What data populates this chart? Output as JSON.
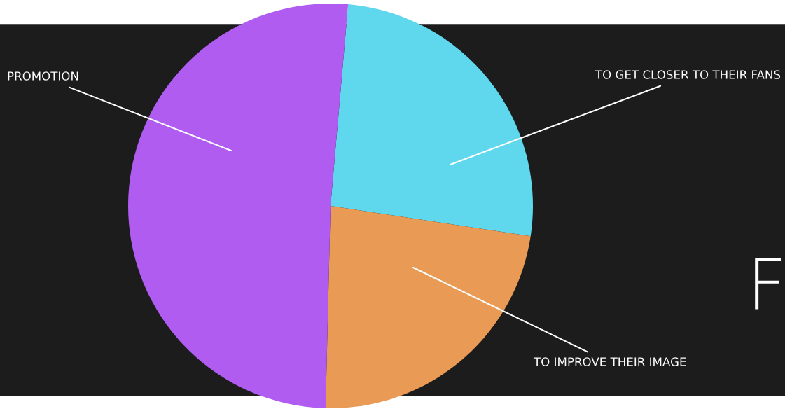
{
  "chart_data": {
    "type": "pie",
    "categories": [
      "TO GET CLOSER TO THEIR FANS",
      "TO IMPROVE THEIR IMAGE",
      "PROMOTION"
    ],
    "values": [
      26,
      23,
      51
    ],
    "colors": [
      "#5fd8ee",
      "#e99a54",
      "#b05cf0"
    ],
    "annotations": [
      "F"
    ]
  }
}
